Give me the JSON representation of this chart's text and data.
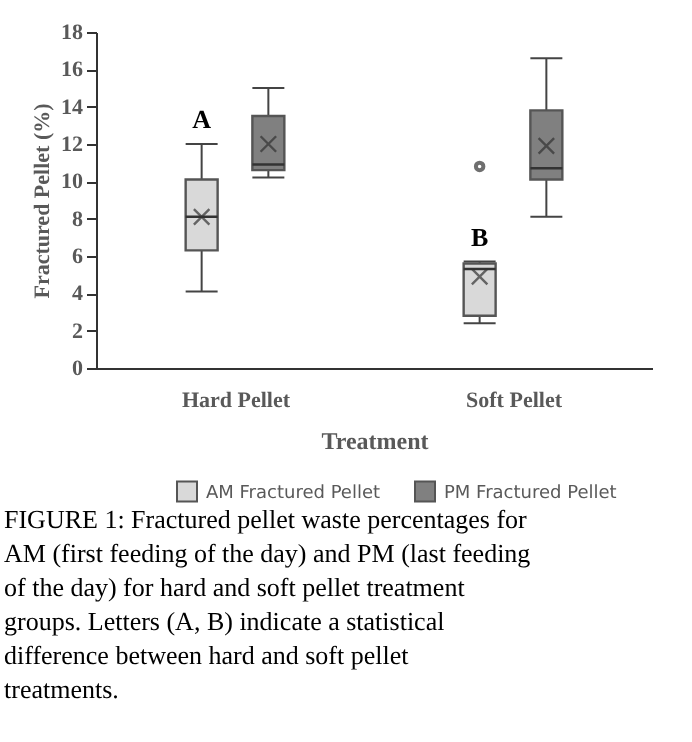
{
  "chart_data": {
    "type": "box",
    "xlabel": "Treatment",
    "ylabel": "Fractured Pellet (%)",
    "categories": [
      "Hard Pellet",
      "Soft Pellet"
    ],
    "ylim": [
      0,
      18
    ],
    "yticks": [
      0,
      2,
      4,
      6,
      8,
      10,
      12,
      14,
      16,
      18
    ],
    "grid": false,
    "legend": "bottom",
    "series": [
      {
        "name": "AM Fractured Pellet",
        "color": "#d9d9d9",
        "boxes": [
          {
            "low": 4.1,
            "q1": 6.3,
            "median": 8.1,
            "q3": 10.1,
            "high": 12.0,
            "mean": 8.1
          },
          {
            "low": 2.4,
            "q1": 2.8,
            "median": 5.3,
            "q3": 5.6,
            "high": 5.7,
            "mean": 4.9,
            "outliers": [
              10.8
            ]
          }
        ]
      },
      {
        "name": "PM Fractured Pellet",
        "color": "#808080",
        "boxes": [
          {
            "low": 10.2,
            "q1": 10.6,
            "median": 10.9,
            "q3": 13.5,
            "high": 15.0,
            "mean": 12.0
          },
          {
            "low": 8.1,
            "q1": 10.1,
            "median": 10.7,
            "q3": 13.8,
            "high": 16.6,
            "mean": 11.9
          }
        ]
      }
    ],
    "annotations": [
      "A",
      "B",
      "FIGURE 1: Fractured pellet waste percentages for AM (first feeding of the day) and PM (last feeding of the day) for hard and soft pellet treatment groups. Letters (A, B) indicate a statistical difference between hard and soft pellet treatments."
    ]
  }
}
